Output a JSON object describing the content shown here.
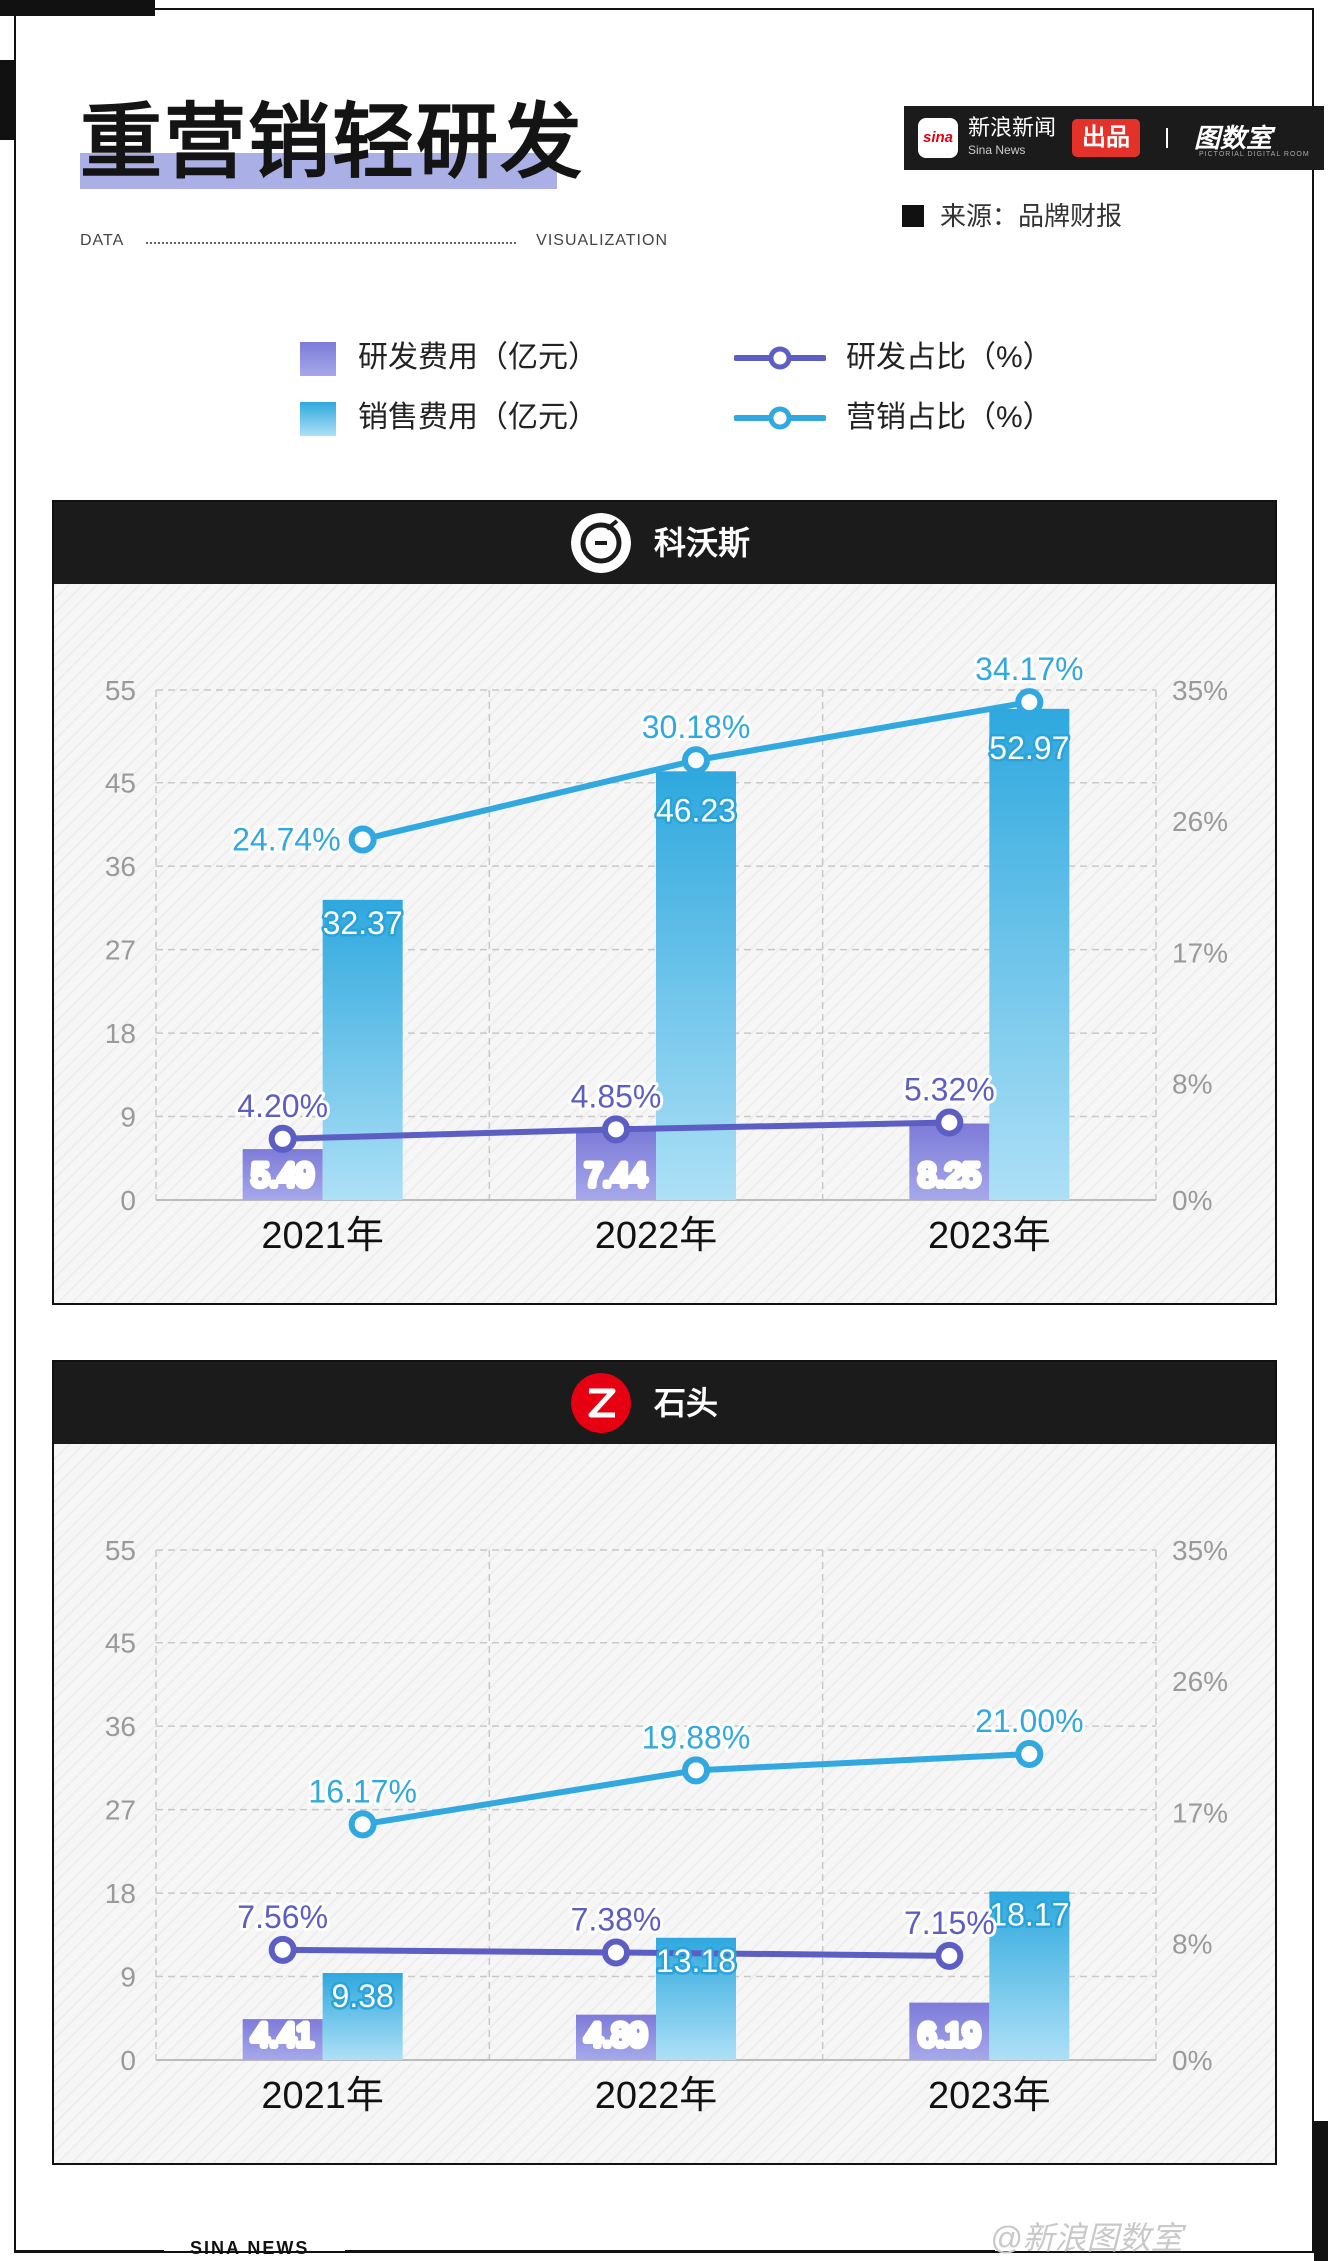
{
  "header": {
    "title": "重营销轻研发",
    "left_label": "DATA",
    "right_label": "VISUALIZATION"
  },
  "brand": {
    "logo_text": "sina",
    "name": "新浪新闻",
    "sub": "Sina News",
    "badge": "出品",
    "lab": "图数室",
    "lab_sub": "PICTORIAL DIGITAL ROOM"
  },
  "source": "来源：品牌财报",
  "legend": {
    "rd_cost": "研发费用（亿元）",
    "sales_cost": "销售费用（亿元）",
    "rd_ratio": "研发占比（%）",
    "mkt_ratio": "营销占比（%）"
  },
  "colors": {
    "rd_bar_top": "#7d7bd8",
    "rd_bar_bottom": "#a6a8ea",
    "sales_bar_top": "#2ea8de",
    "sales_bar_bottom": "#aee0f6",
    "rd_line": "#5d5ec4",
    "mkt_line": "#31a9e0",
    "header_bg": "#1b1b1b"
  },
  "footer": {
    "text": "SINA NEWS",
    "watermark": "@新浪图数室"
  },
  "chart_data": [
    {
      "type": "bar",
      "brand": "科沃斯",
      "categories": [
        "2021年",
        "2022年",
        "2023年"
      ],
      "y_ticks": [
        "0",
        "9",
        "18",
        "27",
        "36",
        "45",
        "55"
      ],
      "y2_ticks": [
        "0%",
        "8%",
        "17%",
        "26%",
        "35%"
      ],
      "ylim": [
        0,
        55
      ],
      "y2lim": [
        0,
        35
      ],
      "grid": true,
      "series": [
        {
          "name": "研发费用（亿元）",
          "kind": "bar",
          "values": [
            5.49,
            7.44,
            8.25
          ],
          "labels": [
            "5.49",
            "7.44",
            "8.25"
          ]
        },
        {
          "name": "销售费用（亿元）",
          "kind": "bar",
          "values": [
            32.37,
            46.23,
            52.97
          ],
          "labels": [
            "32.37",
            "46.23",
            "52.97"
          ]
        },
        {
          "name": "研发占比（%）",
          "kind": "line",
          "axis": "right",
          "values": [
            4.2,
            4.85,
            5.32
          ],
          "labels": [
            "4.20%",
            "4.85%",
            "5.32%"
          ]
        },
        {
          "name": "营销占比（%）",
          "kind": "line",
          "axis": "right",
          "values": [
            24.74,
            30.18,
            34.17
          ],
          "labels": [
            "24.74%",
            "30.18%",
            "34.17%"
          ]
        }
      ]
    },
    {
      "type": "bar",
      "brand": "石头",
      "categories": [
        "2021年",
        "2022年",
        "2023年"
      ],
      "y_ticks": [
        "0",
        "9",
        "18",
        "27",
        "36",
        "45",
        "55"
      ],
      "y2_ticks": [
        "0%",
        "8%",
        "17%",
        "26%",
        "35%"
      ],
      "ylim": [
        0,
        55
      ],
      "y2lim": [
        0,
        35
      ],
      "grid": true,
      "series": [
        {
          "name": "研发费用（亿元）",
          "kind": "bar",
          "values": [
            4.41,
            4.89,
            6.19
          ],
          "labels": [
            "4.41",
            "4.89",
            "6.19"
          ]
        },
        {
          "name": "销售费用（亿元）",
          "kind": "bar",
          "values": [
            9.38,
            13.18,
            18.17
          ],
          "labels": [
            "9.38",
            "13.18",
            "18.17"
          ]
        },
        {
          "name": "研发占比（%）",
          "kind": "line",
          "axis": "right",
          "values": [
            7.56,
            7.38,
            7.15
          ],
          "labels": [
            "7.56%",
            "7.38%",
            "7.15%"
          ]
        },
        {
          "name": "营销占比（%）",
          "kind": "line",
          "axis": "right",
          "values": [
            16.17,
            19.88,
            21.0
          ],
          "labels": [
            "16.17%",
            "19.88%",
            "21.00%"
          ]
        }
      ]
    }
  ]
}
